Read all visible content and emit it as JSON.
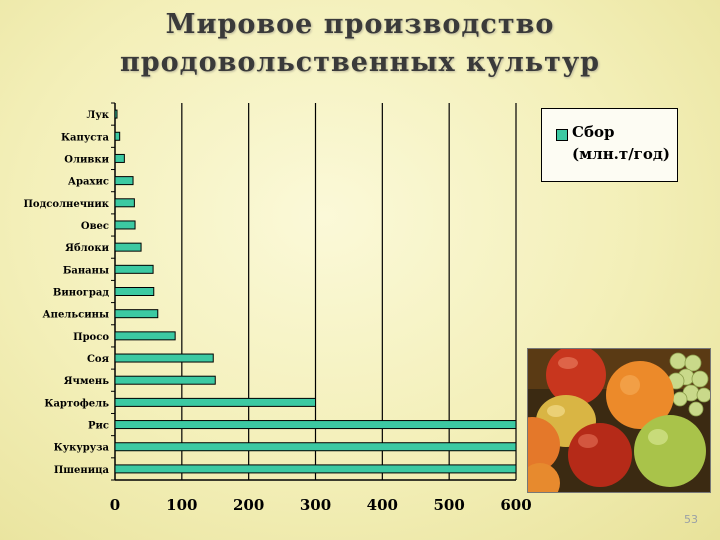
{
  "slide": {
    "title_line1": "Мировое производство",
    "title_line2": "продовольственных культур",
    "page_number": "53"
  },
  "legend": {
    "line1": "Сбор",
    "line2": "(млн.т/год)"
  },
  "photo": {
    "description_icon": "fruit-photo"
  },
  "colors": {
    "bar": "#3cc9a2",
    "grid": "#000000",
    "background": "#f6f3c6"
  },
  "chart_data": {
    "type": "bar",
    "orientation": "horizontal",
    "categories": [
      "Лук",
      "Капуста",
      "Оливки",
      "Арахис",
      "Подсолнечник",
      "Овес",
      "Яблоки",
      "Бананы",
      "Виноград",
      "Апельсины",
      "Просо",
      "Соя",
      "Ячмень",
      "Картофель",
      "Рис",
      "Кукуруза",
      "Пшеница"
    ],
    "series": [
      {
        "name": "Сбор (млн.т/год)",
        "values": [
          3,
          7,
          14,
          27,
          29,
          30,
          39,
          57,
          58,
          64,
          90,
          147,
          150,
          300,
          600,
          600,
          600
        ]
      }
    ],
    "xlim": [
      0,
      600
    ],
    "xticks": [
      0,
      100,
      200,
      300,
      400,
      500,
      600
    ],
    "grid": "vertical",
    "legend_position": "top-right"
  }
}
